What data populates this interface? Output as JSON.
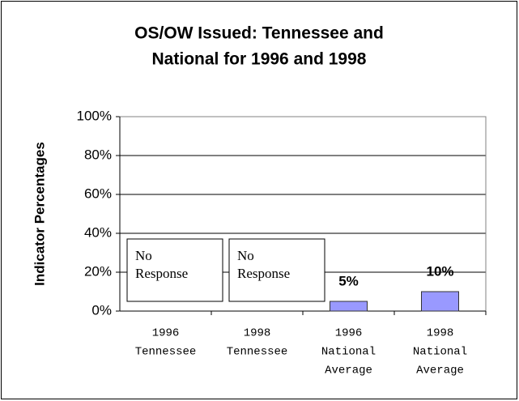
{
  "chart_data": {
    "type": "bar",
    "title": [
      "OS/OW Issued: Tennessee and",
      "National for 1996 and 1998"
    ],
    "y_label": "Indicator Percentages",
    "categories": [
      [
        "1996",
        "Tennessee"
      ],
      [
        "1998",
        "Tennessee"
      ],
      [
        "1996",
        "National",
        "Average"
      ],
      [
        "1998",
        "National",
        "Average"
      ]
    ],
    "values": [
      null,
      null,
      5,
      10
    ],
    "value_labels": [
      null,
      null,
      "5%",
      "10%"
    ],
    "annotations": [
      "No Response",
      "No Response"
    ],
    "color": "#9999ff",
    "ylim": [
      0,
      100
    ],
    "yticks": [
      {
        "value": 0,
        "label": "0%"
      },
      {
        "value": 20,
        "label": "20%"
      },
      {
        "value": 40,
        "label": "40%"
      },
      {
        "value": 60,
        "label": "60%"
      },
      {
        "value": 80,
        "label": "80%"
      },
      {
        "value": 100,
        "label": "100%"
      }
    ],
    "grid": true
  }
}
